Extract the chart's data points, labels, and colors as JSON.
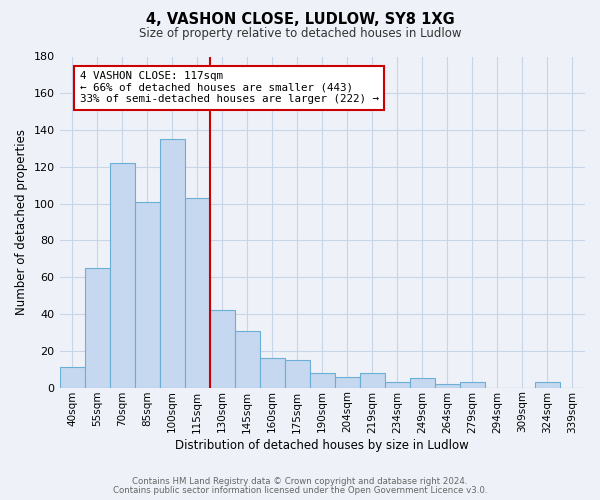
{
  "title": "4, VASHON CLOSE, LUDLOW, SY8 1XG",
  "subtitle": "Size of property relative to detached houses in Ludlow",
  "xlabel": "Distribution of detached houses by size in Ludlow",
  "ylabel": "Number of detached properties",
  "bar_labels": [
    "40sqm",
    "55sqm",
    "70sqm",
    "85sqm",
    "100sqm",
    "115sqm",
    "130sqm",
    "145sqm",
    "160sqm",
    "175sqm",
    "190sqm",
    "204sqm",
    "219sqm",
    "234sqm",
    "249sqm",
    "264sqm",
    "279sqm",
    "294sqm",
    "309sqm",
    "324sqm",
    "339sqm"
  ],
  "bar_values": [
    11,
    65,
    122,
    101,
    135,
    103,
    42,
    31,
    16,
    15,
    8,
    6,
    8,
    3,
    5,
    2,
    3,
    0,
    0,
    3,
    0
  ],
  "bar_color": "#c5d8ef",
  "bar_edge_color": "#6baed6",
  "vline_index": 5,
  "vline_color": "#cc0000",
  "annotation_text": "4 VASHON CLOSE: 117sqm\n← 66% of detached houses are smaller (443)\n33% of semi-detached houses are larger (222) →",
  "annotation_box_color": "#ffffff",
  "annotation_box_edge": "#cc0000",
  "ylim": [
    0,
    180
  ],
  "yticks": [
    0,
    20,
    40,
    60,
    80,
    100,
    120,
    140,
    160,
    180
  ],
  "grid_color": "#c8d4e8",
  "footer_line1": "Contains HM Land Registry data © Crown copyright and database right 2024.",
  "footer_line2": "Contains public sector information licensed under the Open Government Licence v3.0.",
  "bg_color": "#eef2f8"
}
